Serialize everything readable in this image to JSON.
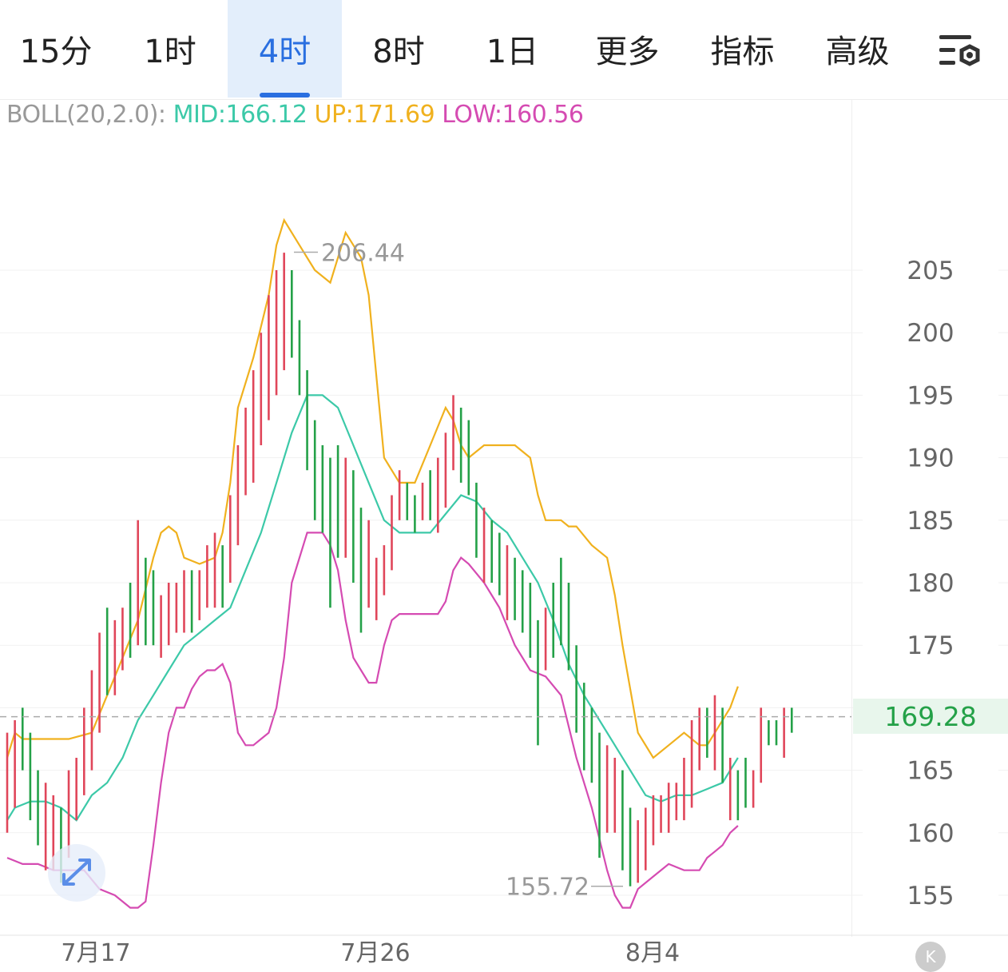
{
  "tabs": [
    {
      "label": "15分",
      "active": false,
      "dropdown": false
    },
    {
      "label": "1时",
      "active": false,
      "dropdown": false
    },
    {
      "label": "4时",
      "active": true,
      "dropdown": false
    },
    {
      "label": "8时",
      "active": false,
      "dropdown": false
    },
    {
      "label": "1日",
      "active": false,
      "dropdown": false
    },
    {
      "label": "更多",
      "active": false,
      "dropdown": true
    },
    {
      "label": "指标",
      "active": false,
      "dropdown": true
    },
    {
      "label": "高级",
      "active": false,
      "dropdown": true
    }
  ],
  "settings_icon": "chart-settings-icon",
  "legend": {
    "name": "BOLL(20,2.0):",
    "mid": "MID:166.12",
    "up": "UP:171.69",
    "low": "LOW:160.56"
  },
  "colors": {
    "accent": "#2a6fe0",
    "up_candle": "#e0465a",
    "down_candle": "#24a148",
    "mid": "#3cc9a8",
    "upper": "#f0b11e",
    "lower": "#d54bb2"
  },
  "current_price": "169.28",
  "high_label": "206.44",
  "low_label": "155.72",
  "k_button": "K",
  "chart_data": {
    "type": "candlestick",
    "title": "",
    "x_labels": [
      "7月17",
      "7月26",
      "8月4"
    ],
    "y_ticks": [
      "205",
      "200",
      "195",
      "190",
      "185",
      "180",
      "175",
      "165",
      "160",
      "155"
    ],
    "ylim": [
      152,
      214
    ],
    "grid": true,
    "upper_band": [
      [
        0,
        166
      ],
      [
        1,
        168
      ],
      [
        2,
        167.5
      ],
      [
        3,
        167.5
      ],
      [
        5,
        167.5
      ],
      [
        8,
        167.5
      ],
      [
        11,
        168
      ],
      [
        13,
        171
      ],
      [
        15,
        174
      ],
      [
        17,
        177
      ],
      [
        19,
        182
      ],
      [
        20,
        184
      ],
      [
        21,
        184.5
      ],
      [
        22,
        184
      ],
      [
        23,
        182
      ],
      [
        25,
        181.5
      ],
      [
        27,
        182
      ],
      [
        28,
        184
      ],
      [
        29,
        188
      ],
      [
        30,
        194
      ],
      [
        32,
        198
      ],
      [
        34,
        203
      ],
      [
        35,
        207
      ],
      [
        36,
        209
      ],
      [
        37,
        208
      ],
      [
        38,
        207
      ],
      [
        40,
        205
      ],
      [
        42,
        204
      ],
      [
        44,
        208
      ],
      [
        45,
        207
      ],
      [
        46,
        206
      ],
      [
        47,
        203
      ],
      [
        49,
        190
      ],
      [
        51,
        188
      ],
      [
        53,
        188
      ],
      [
        55,
        191
      ],
      [
        57,
        194
      ],
      [
        58,
        193
      ],
      [
        59,
        191
      ],
      [
        60,
        190
      ],
      [
        62,
        191
      ],
      [
        64,
        191
      ],
      [
        66,
        191
      ],
      [
        68,
        190
      ],
      [
        69,
        187
      ],
      [
        70,
        185
      ],
      [
        71,
        185
      ],
      [
        72,
        185
      ],
      [
        73,
        184.5
      ],
      [
        74,
        184.5
      ],
      [
        76,
        183
      ],
      [
        78,
        182
      ],
      [
        79,
        179
      ],
      [
        80,
        175
      ],
      [
        82,
        168
      ],
      [
        84,
        166
      ],
      [
        86,
        167
      ],
      [
        88,
        168
      ],
      [
        89,
        167.5
      ],
      [
        90,
        167
      ],
      [
        91,
        167
      ],
      [
        92,
        168
      ],
      [
        94,
        170
      ],
      [
        95,
        171.7
      ]
    ],
    "mid_band": [
      [
        0,
        161
      ],
      [
        1,
        162
      ],
      [
        3,
        162.5
      ],
      [
        5,
        162.5
      ],
      [
        7,
        162
      ],
      [
        9,
        161
      ],
      [
        11,
        163
      ],
      [
        13,
        164
      ],
      [
        15,
        166
      ],
      [
        17,
        169
      ],
      [
        19,
        171
      ],
      [
        21,
        173
      ],
      [
        23,
        175
      ],
      [
        25,
        176
      ],
      [
        27,
        177
      ],
      [
        29,
        178
      ],
      [
        31,
        181
      ],
      [
        33,
        184
      ],
      [
        35,
        188
      ],
      [
        37,
        192
      ],
      [
        39,
        195
      ],
      [
        41,
        195
      ],
      [
        43,
        194
      ],
      [
        45,
        191
      ],
      [
        47,
        188
      ],
      [
        49,
        185
      ],
      [
        51,
        184
      ],
      [
        53,
        184
      ],
      [
        55,
        184
      ],
      [
        57,
        185.5
      ],
      [
        59,
        187
      ],
      [
        61,
        186.5
      ],
      [
        63,
        185
      ],
      [
        65,
        184
      ],
      [
        67,
        182
      ],
      [
        69,
        180
      ],
      [
        71,
        177
      ],
      [
        73,
        173.5
      ],
      [
        75,
        171
      ],
      [
        77,
        169
      ],
      [
        79,
        167
      ],
      [
        81,
        165
      ],
      [
        83,
        163
      ],
      [
        85,
        162.5
      ],
      [
        87,
        163
      ],
      [
        89,
        163
      ],
      [
        91,
        163.5
      ],
      [
        93,
        164
      ],
      [
        95,
        166
      ]
    ],
    "lower_band": [
      [
        0,
        158
      ],
      [
        2,
        157.5
      ],
      [
        4,
        157.5
      ],
      [
        6,
        157
      ],
      [
        8,
        157
      ],
      [
        10,
        157
      ],
      [
        12,
        155.5
      ],
      [
        14,
        155
      ],
      [
        16,
        154
      ],
      [
        17,
        154
      ],
      [
        18,
        154.5
      ],
      [
        19,
        159
      ],
      [
        20,
        164
      ],
      [
        21,
        168
      ],
      [
        22,
        170
      ],
      [
        23,
        170
      ],
      [
        24,
        171.5
      ],
      [
        25,
        172.5
      ],
      [
        26,
        173
      ],
      [
        27,
        173
      ],
      [
        28,
        173.5
      ],
      [
        29,
        172
      ],
      [
        30,
        168
      ],
      [
        31,
        167
      ],
      [
        32,
        167
      ],
      [
        33,
        167.5
      ],
      [
        34,
        168
      ],
      [
        35,
        170
      ],
      [
        36,
        174
      ],
      [
        37,
        180
      ],
      [
        39,
        184
      ],
      [
        40,
        184
      ],
      [
        41,
        184
      ],
      [
        42,
        183
      ],
      [
        43,
        181
      ],
      [
        44,
        177
      ],
      [
        45,
        174
      ],
      [
        46,
        173
      ],
      [
        47,
        172
      ],
      [
        48,
        172
      ],
      [
        49,
        175
      ],
      [
        50,
        177
      ],
      [
        51,
        177.5
      ],
      [
        52,
        177.5
      ],
      [
        53,
        177.5
      ],
      [
        54,
        177.5
      ],
      [
        55,
        177.5
      ],
      [
        56,
        177.5
      ],
      [
        57,
        178.5
      ],
      [
        58,
        181
      ],
      [
        59,
        182
      ],
      [
        60,
        181.5
      ],
      [
        62,
        180
      ],
      [
        64,
        178
      ],
      [
        66,
        175
      ],
      [
        68,
        173
      ],
      [
        70,
        172.5
      ],
      [
        72,
        171
      ],
      [
        74,
        166
      ],
      [
        76,
        162
      ],
      [
        78,
        157
      ],
      [
        79,
        155
      ],
      [
        80,
        154
      ],
      [
        81,
        154
      ],
      [
        82,
        155.5
      ],
      [
        84,
        156.5
      ],
      [
        86,
        157.5
      ],
      [
        88,
        157
      ],
      [
        89,
        157
      ],
      [
        90,
        157
      ],
      [
        91,
        158
      ],
      [
        92,
        158.5
      ],
      [
        93,
        159
      ],
      [
        94,
        160
      ],
      [
        95,
        160.56
      ]
    ],
    "candles": [
      {
        "h": 168,
        "l": 160,
        "c": "up"
      },
      {
        "h": 169,
        "l": 162,
        "c": "up"
      },
      {
        "h": 170,
        "l": 165,
        "c": "down"
      },
      {
        "h": 168,
        "l": 161,
        "c": "down"
      },
      {
        "h": 165,
        "l": 159,
        "c": "down"
      },
      {
        "h": 164,
        "l": 157,
        "c": "up"
      },
      {
        "h": 163,
        "l": 157,
        "c": "up"
      },
      {
        "h": 162,
        "l": 156,
        "c": "down"
      },
      {
        "h": 165,
        "l": 158,
        "c": "up"
      },
      {
        "h": 166,
        "l": 161,
        "c": "up"
      },
      {
        "h": 170,
        "l": 163,
        "c": "up"
      },
      {
        "h": 173,
        "l": 165,
        "c": "up"
      },
      {
        "h": 176,
        "l": 168,
        "c": "up"
      },
      {
        "h": 178,
        "l": 171,
        "c": "down"
      },
      {
        "h": 177,
        "l": 171,
        "c": "up"
      },
      {
        "h": 178,
        "l": 173,
        "c": "up"
      },
      {
        "h": 180,
        "l": 174,
        "c": "down"
      },
      {
        "h": 185,
        "l": 175,
        "c": "up"
      },
      {
        "h": 182,
        "l": 175,
        "c": "down"
      },
      {
        "h": 181,
        "l": 175,
        "c": "down"
      },
      {
        "h": 179,
        "l": 174,
        "c": "up"
      },
      {
        "h": 180,
        "l": 175,
        "c": "up"
      },
      {
        "h": 180,
        "l": 176,
        "c": "up"
      },
      {
        "h": 181,
        "l": 176,
        "c": "up"
      },
      {
        "h": 181,
        "l": 176,
        "c": "down"
      },
      {
        "h": 181,
        "l": 177,
        "c": "up"
      },
      {
        "h": 183,
        "l": 178,
        "c": "up"
      },
      {
        "h": 184,
        "l": 178,
        "c": "up"
      },
      {
        "h": 183,
        "l": 178,
        "c": "down"
      },
      {
        "h": 187,
        "l": 180,
        "c": "up"
      },
      {
        "h": 191,
        "l": 183,
        "c": "up"
      },
      {
        "h": 194,
        "l": 187,
        "c": "up"
      },
      {
        "h": 197,
        "l": 188,
        "c": "up"
      },
      {
        "h": 200,
        "l": 191,
        "c": "up"
      },
      {
        "h": 203,
        "l": 193,
        "c": "up"
      },
      {
        "h": 205,
        "l": 195,
        "c": "up"
      },
      {
        "h": 206.4,
        "l": 197,
        "c": "up"
      },
      {
        "h": 205,
        "l": 198,
        "c": "down"
      },
      {
        "h": 201,
        "l": 195,
        "c": "down"
      },
      {
        "h": 197,
        "l": 189,
        "c": "down"
      },
      {
        "h": 193,
        "l": 185,
        "c": "down"
      },
      {
        "h": 191,
        "l": 184,
        "c": "down"
      },
      {
        "h": 190,
        "l": 178,
        "c": "down"
      },
      {
        "h": 191,
        "l": 182,
        "c": "down"
      },
      {
        "h": 190,
        "l": 182,
        "c": "up"
      },
      {
        "h": 189,
        "l": 180,
        "c": "down"
      },
      {
        "h": 186,
        "l": 176,
        "c": "down"
      },
      {
        "h": 185,
        "l": 178,
        "c": "up"
      },
      {
        "h": 182,
        "l": 177,
        "c": "up"
      },
      {
        "h": 183,
        "l": 179,
        "c": "up"
      },
      {
        "h": 187,
        "l": 181,
        "c": "up"
      },
      {
        "h": 189,
        "l": 185,
        "c": "up"
      },
      {
        "h": 188,
        "l": 185,
        "c": "down"
      },
      {
        "h": 187,
        "l": 184,
        "c": "down"
      },
      {
        "h": 188,
        "l": 185,
        "c": "up"
      },
      {
        "h": 189,
        "l": 185,
        "c": "down"
      },
      {
        "h": 190,
        "l": 184,
        "c": "up"
      },
      {
        "h": 192,
        "l": 186,
        "c": "up"
      },
      {
        "h": 195,
        "l": 189,
        "c": "up"
      },
      {
        "h": 194,
        "l": 188,
        "c": "down"
      },
      {
        "h": 193,
        "l": 187,
        "c": "down"
      },
      {
        "h": 188,
        "l": 182,
        "c": "down"
      },
      {
        "h": 186,
        "l": 180,
        "c": "up"
      },
      {
        "h": 185,
        "l": 180,
        "c": "down"
      },
      {
        "h": 184,
        "l": 179,
        "c": "down"
      },
      {
        "h": 183,
        "l": 177,
        "c": "up"
      },
      {
        "h": 182,
        "l": 177,
        "c": "down"
      },
      {
        "h": 181,
        "l": 176,
        "c": "down"
      },
      {
        "h": 180,
        "l": 174,
        "c": "down"
      },
      {
        "h": 177,
        "l": 167,
        "c": "down"
      },
      {
        "h": 178,
        "l": 173,
        "c": "up"
      },
      {
        "h": 180,
        "l": 174,
        "c": "down"
      },
      {
        "h": 182,
        "l": 175,
        "c": "down"
      },
      {
        "h": 180,
        "l": 173,
        "c": "down"
      },
      {
        "h": 175,
        "l": 168,
        "c": "down"
      },
      {
        "h": 172,
        "l": 165,
        "c": "down"
      },
      {
        "h": 170,
        "l": 164,
        "c": "down"
      },
      {
        "h": 168,
        "l": 158,
        "c": "down"
      },
      {
        "h": 167,
        "l": 160,
        "c": "up"
      },
      {
        "h": 166,
        "l": 160,
        "c": "up"
      },
      {
        "h": 165,
        "l": 157,
        "c": "down"
      },
      {
        "h": 162,
        "l": 155.72,
        "c": "down"
      },
      {
        "h": 161,
        "l": 156,
        "c": "up"
      },
      {
        "h": 162,
        "l": 157,
        "c": "up"
      },
      {
        "h": 163,
        "l": 159,
        "c": "up"
      },
      {
        "h": 163,
        "l": 160,
        "c": "up"
      },
      {
        "h": 164,
        "l": 160,
        "c": "up"
      },
      {
        "h": 164,
        "l": 161,
        "c": "up"
      },
      {
        "h": 166,
        "l": 161,
        "c": "up"
      },
      {
        "h": 169,
        "l": 162,
        "c": "up"
      },
      {
        "h": 170,
        "l": 165,
        "c": "up"
      },
      {
        "h": 170,
        "l": 166,
        "c": "down"
      },
      {
        "h": 171,
        "l": 165,
        "c": "up"
      },
      {
        "h": 170,
        "l": 164,
        "c": "down"
      },
      {
        "h": 166,
        "l": 161,
        "c": "up"
      },
      {
        "h": 165,
        "l": 161,
        "c": "down"
      },
      {
        "h": 166,
        "l": 162,
        "c": "down"
      },
      {
        "h": 165,
        "l": 162,
        "c": "up"
      },
      {
        "h": 170,
        "l": 164,
        "c": "up"
      },
      {
        "h": 169,
        "l": 167,
        "c": "down"
      },
      {
        "h": 169,
        "l": 167,
        "c": "down"
      },
      {
        "h": 170,
        "l": 166,
        "c": "up"
      },
      {
        "h": 170,
        "l": 168,
        "c": "down"
      }
    ]
  }
}
